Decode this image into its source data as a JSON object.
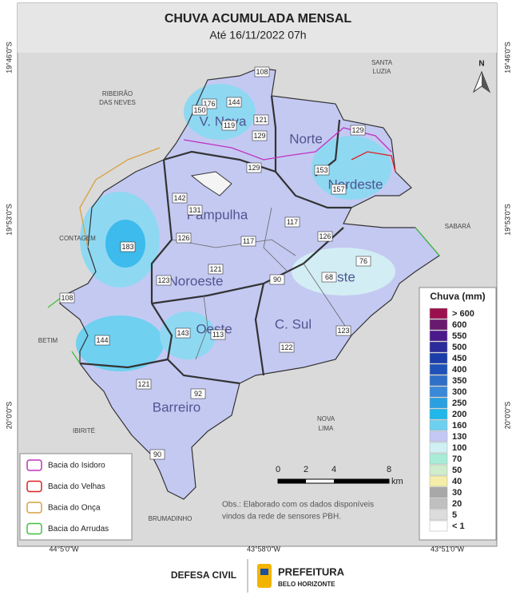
{
  "header": {
    "title": "CHUVA ACUMULADA MENSAL",
    "subtitle": "Até 16/11/2022 07h"
  },
  "coordinates": {
    "left": [
      "19°46'0\"S",
      "19°53'0\"S",
      "20°0'0\"S"
    ],
    "right": [
      "19°46'0\"S",
      "19°53'0\"S",
      "20°0'0\"S"
    ],
    "bottom": [
      "44°5'0\"W",
      "43°58'0\"W",
      "43°51'0\"W"
    ]
  },
  "places": [
    "RIBEIRÃO",
    "DAS NEVES",
    "SANTA",
    "LUZIA",
    "CONTAGEM",
    "SABARÁ",
    "BETIM",
    "IBIRITÉ",
    "NOVA",
    "LIMA",
    "BRUMADINHO"
  ],
  "regions": [
    "V. Nova",
    "Norte",
    "Nordeste",
    "Pampulha",
    "Noroeste",
    "Leste",
    "Oeste",
    "C. Sul",
    "Barreiro"
  ],
  "stations": [
    108,
    176,
    144,
    150,
    121,
    119,
    129,
    129,
    129,
    153,
    157,
    142,
    131,
    117,
    117,
    126,
    183,
    126,
    121,
    123,
    90,
    76,
    68,
    108,
    144,
    143,
    113,
    122,
    123,
    121,
    92,
    90
  ],
  "north": "N",
  "legend": {
    "title": "Chuva (mm)",
    "items": [
      {
        "label": "> 600",
        "color": "#9b0f4e"
      },
      {
        "label": "600",
        "color": "#6a1a6e"
      },
      {
        "label": "550",
        "color": "#4b1a8a"
      },
      {
        "label": "500",
        "color": "#2b2b9a"
      },
      {
        "label": "450",
        "color": "#1b3ea8"
      },
      {
        "label": "400",
        "color": "#1f52b8"
      },
      {
        "label": "350",
        "color": "#2f6fc8"
      },
      {
        "label": "300",
        "color": "#3a88d8"
      },
      {
        "label": "250",
        "color": "#2aa0e0"
      },
      {
        "label": "200",
        "color": "#20b8ea"
      },
      {
        "label": "160",
        "color": "#6ed0f0"
      },
      {
        "label": "130",
        "color": "#c4c8f4"
      },
      {
        "label": "100",
        "color": "#d0f0f4"
      },
      {
        "label": "70",
        "color": "#a8ecd8"
      },
      {
        "label": "50",
        "color": "#cfeccc"
      },
      {
        "label": "40",
        "color": "#f4eea8"
      },
      {
        "label": "30",
        "color": "#a8a8a8"
      },
      {
        "label": "20",
        "color": "#c0c0c0"
      },
      {
        "label": "5",
        "color": "#dcdcdc"
      },
      {
        "label": "< 1",
        "color": "#ffffff"
      }
    ]
  },
  "scale": {
    "labels": [
      "0",
      "2",
      "4",
      "8"
    ],
    "unit": "km"
  },
  "basins": [
    {
      "label": "Bacia do Isidoro",
      "color": "#c030c0"
    },
    {
      "label": "Bacia do Velhas",
      "color": "#e02020"
    },
    {
      "label": "Bacia do Onça",
      "color": "#d8a040"
    },
    {
      "label": "Bacia do Arrudas",
      "color": "#40c040"
    }
  ],
  "note": [
    "Obs.: Elaborado com os dados disponíveis",
    "vindos da rede de sensores PBH."
  ],
  "footer": {
    "left": "DEFESA CIVIL",
    "logo_title": "PREFEITURA",
    "logo_subtitle": "BELO HORIZONTE"
  }
}
